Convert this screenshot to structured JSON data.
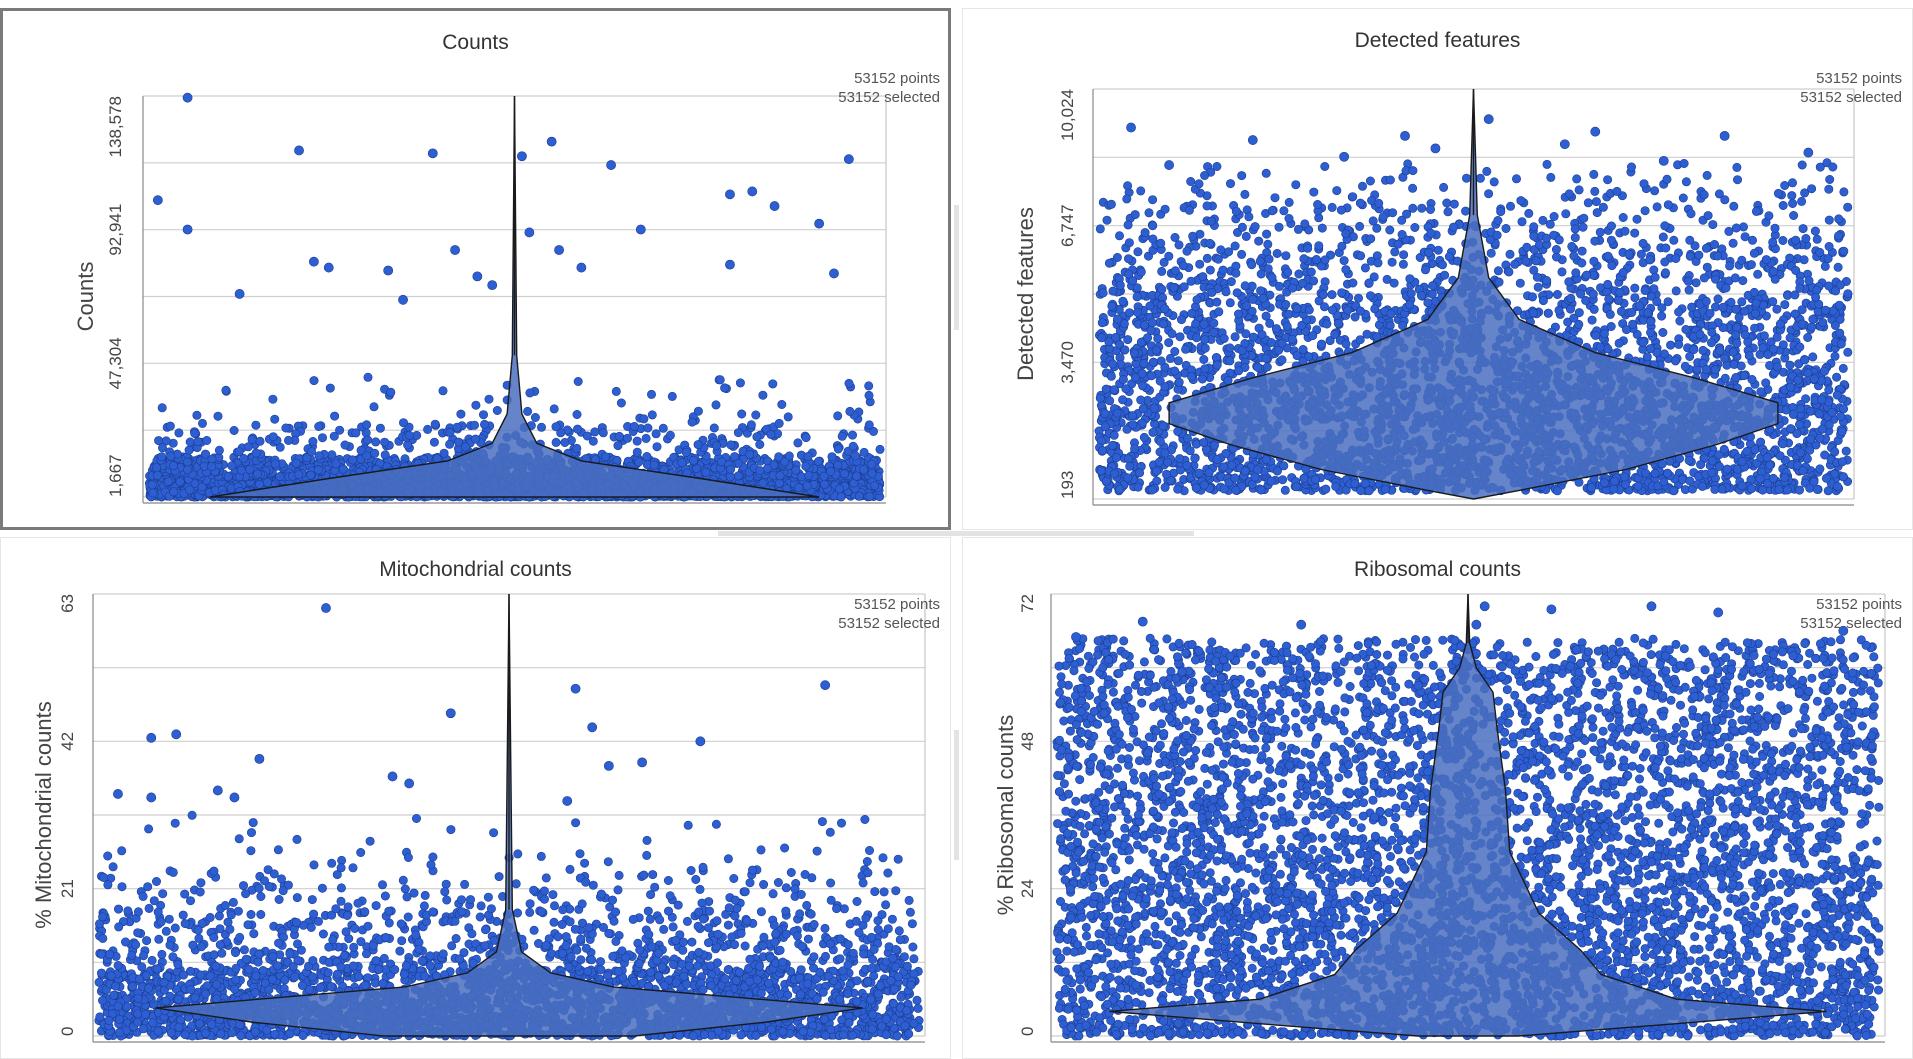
{
  "panels": [
    {
      "id": "counts",
      "title": "Counts",
      "ylabel": "Counts",
      "points_text": "53152 points",
      "selected_text": "53152 selected",
      "y_ticks": [
        "1,667",
        "47,304",
        "92,941",
        "138,578"
      ],
      "active": true
    },
    {
      "id": "features",
      "title": "Detected features",
      "ylabel": "Detected features",
      "points_text": "53152 points",
      "selected_text": "53152 selected",
      "y_ticks": [
        "193",
        "3,470",
        "6,747",
        "10,024"
      ],
      "active": false
    },
    {
      "id": "mito",
      "title": "Mitochondrial counts",
      "ylabel": "% Mitochondrial counts",
      "points_text": "53152 points",
      "selected_text": "53152 selected",
      "y_ticks": [
        "0",
        "21",
        "42",
        "63"
      ],
      "active": false
    },
    {
      "id": "ribo",
      "title": "Ribosomal counts",
      "ylabel": "% Ribosomal counts",
      "points_text": "53152 points",
      "selected_text": "53152 selected",
      "y_ticks": [
        "0",
        "24",
        "48",
        "72"
      ],
      "active": false
    }
  ],
  "chart_data": [
    {
      "type": "scatter",
      "subtype": "violin-with-jitter",
      "title": "Counts",
      "ylabel": "Counts",
      "ylim": [
        1667,
        138578
      ],
      "yticks": [
        1667,
        47304,
        92941,
        138578
      ],
      "n_points": 53152,
      "n_selected": 53152,
      "grid": true,
      "point_color": "#2d5fd3",
      "violin_color": "#4a6fc0",
      "violin_profile": [
        {
          "y": 1667,
          "w": 0.82
        },
        {
          "y": 8000,
          "w": 0.5
        },
        {
          "y": 14000,
          "w": 0.18
        },
        {
          "y": 20000,
          "w": 0.06
        },
        {
          "y": 30000,
          "w": 0.02
        },
        {
          "y": 50000,
          "w": 0.006
        },
        {
          "y": 138578,
          "w": 0.0
        }
      ],
      "outliers": [
        {
          "x": 0.06,
          "y": 138000
        },
        {
          "x": 0.02,
          "y": 103000
        },
        {
          "x": 0.06,
          "y": 93000
        },
        {
          "x": 0.21,
          "y": 120000
        },
        {
          "x": 0.39,
          "y": 119000
        },
        {
          "x": 0.51,
          "y": 118000
        },
        {
          "x": 0.55,
          "y": 123000
        },
        {
          "x": 0.63,
          "y": 115000
        },
        {
          "x": 0.95,
          "y": 117000
        },
        {
          "x": 0.79,
          "y": 105000
        },
        {
          "x": 0.82,
          "y": 106000
        },
        {
          "x": 0.85,
          "y": 101000
        },
        {
          "x": 0.91,
          "y": 95000
        },
        {
          "x": 0.67,
          "y": 93000
        },
        {
          "x": 0.52,
          "y": 92000
        },
        {
          "x": 0.42,
          "y": 86000
        },
        {
          "x": 0.56,
          "y": 86000
        },
        {
          "x": 0.23,
          "y": 82000
        },
        {
          "x": 0.25,
          "y": 80000
        },
        {
          "x": 0.33,
          "y": 79000
        },
        {
          "x": 0.45,
          "y": 77000
        },
        {
          "x": 0.47,
          "y": 74000
        },
        {
          "x": 0.13,
          "y": 71000
        },
        {
          "x": 0.35,
          "y": 69000
        },
        {
          "x": 0.59,
          "y": 80000
        },
        {
          "x": 0.79,
          "y": 81000
        },
        {
          "x": 0.93,
          "y": 78000
        }
      ]
    },
    {
      "type": "scatter",
      "subtype": "violin-with-jitter",
      "title": "Detected features",
      "ylabel": "Detected features",
      "ylim": [
        193,
        10024
      ],
      "yticks": [
        193,
        3470,
        6747,
        10024
      ],
      "n_points": 53152,
      "n_selected": 53152,
      "grid": true,
      "point_color": "#2d5fd3",
      "violin_color": "#4a6fc0",
      "violin_profile": [
        {
          "y": 193,
          "w": 0.0
        },
        {
          "y": 400,
          "w": 0.12
        },
        {
          "y": 900,
          "w": 0.4
        },
        {
          "y": 1500,
          "w": 0.64
        },
        {
          "y": 2000,
          "w": 0.8
        },
        {
          "y": 2500,
          "w": 0.8
        },
        {
          "y": 3100,
          "w": 0.58
        },
        {
          "y": 3700,
          "w": 0.32
        },
        {
          "y": 4500,
          "w": 0.12
        },
        {
          "y": 5500,
          "w": 0.04
        },
        {
          "y": 7000,
          "w": 0.01
        },
        {
          "y": 10024,
          "w": 0.0
        }
      ],
      "outliers": [
        {
          "x": 0.05,
          "y": 9100
        },
        {
          "x": 0.52,
          "y": 9300
        },
        {
          "x": 0.66,
          "y": 9000
        },
        {
          "x": 0.83,
          "y": 8900
        },
        {
          "x": 0.21,
          "y": 8800
        },
        {
          "x": 0.41,
          "y": 8900
        },
        {
          "x": 0.62,
          "y": 8700
        },
        {
          "x": 0.94,
          "y": 8500
        },
        {
          "x": 0.1,
          "y": 8200
        },
        {
          "x": 0.33,
          "y": 8400
        },
        {
          "x": 0.75,
          "y": 8300
        },
        {
          "x": 0.45,
          "y": 8600
        }
      ]
    },
    {
      "type": "scatter",
      "subtype": "violin-with-jitter",
      "title": "Mitochondrial counts",
      "ylabel": "% Mitochondrial counts",
      "ylim": [
        0,
        63
      ],
      "yticks": [
        0,
        21,
        42,
        63
      ],
      "n_points": 53152,
      "n_selected": 53152,
      "grid": true,
      "point_color": "#2d5fd3",
      "violin_color": "#4a6fc0",
      "violin_profile": [
        {
          "y": 0,
          "w": 0.3
        },
        {
          "y": 2,
          "w": 0.62
        },
        {
          "y": 4,
          "w": 0.85
        },
        {
          "y": 5.5,
          "w": 0.55
        },
        {
          "y": 7,
          "w": 0.25
        },
        {
          "y": 9,
          "w": 0.1
        },
        {
          "y": 12,
          "w": 0.03
        },
        {
          "y": 18,
          "w": 0.008
        },
        {
          "y": 63,
          "w": 0.0
        }
      ],
      "outliers": [
        {
          "x": 0.28,
          "y": 61
        },
        {
          "x": 0.88,
          "y": 50
        },
        {
          "x": 0.58,
          "y": 49.5
        },
        {
          "x": 0.43,
          "y": 46
        },
        {
          "x": 0.6,
          "y": 44
        },
        {
          "x": 0.07,
          "y": 42.5
        },
        {
          "x": 0.1,
          "y": 43
        },
        {
          "x": 0.73,
          "y": 42
        },
        {
          "x": 0.2,
          "y": 39.5
        },
        {
          "x": 0.66,
          "y": 39
        },
        {
          "x": 0.62,
          "y": 38.5
        },
        {
          "x": 0.36,
          "y": 37
        },
        {
          "x": 0.38,
          "y": 36
        },
        {
          "x": 0.03,
          "y": 34.5
        },
        {
          "x": 0.07,
          "y": 34
        },
        {
          "x": 0.15,
          "y": 35
        },
        {
          "x": 0.17,
          "y": 34
        },
        {
          "x": 0.57,
          "y": 33.5
        }
      ]
    },
    {
      "type": "scatter",
      "subtype": "violin-with-jitter",
      "title": "Ribosomal counts",
      "ylabel": "% Ribosomal counts",
      "ylim": [
        0,
        72
      ],
      "yticks": [
        0,
        24,
        48,
        72
      ],
      "n_points": 53152,
      "n_selected": 53152,
      "grid": true,
      "point_color": "#2d5fd3",
      "violin_color": "#4a6fc0",
      "violin_profile": [
        {
          "y": 0,
          "w": 0.12
        },
        {
          "y": 2,
          "w": 0.5
        },
        {
          "y": 4,
          "w": 0.86
        },
        {
          "y": 6,
          "w": 0.5
        },
        {
          "y": 10,
          "w": 0.32
        },
        {
          "y": 14,
          "w": 0.27
        },
        {
          "y": 20,
          "w": 0.17
        },
        {
          "y": 30,
          "w": 0.1
        },
        {
          "y": 40,
          "w": 0.09
        },
        {
          "y": 50,
          "w": 0.07
        },
        {
          "y": 56,
          "w": 0.06
        },
        {
          "y": 60,
          "w": 0.02
        },
        {
          "y": 64,
          "w": 0.004
        },
        {
          "y": 72,
          "w": 0.0
        }
      ],
      "outliers": [
        {
          "x": 0.72,
          "y": 70
        },
        {
          "x": 0.52,
          "y": 70
        },
        {
          "x": 0.6,
          "y": 69.5
        },
        {
          "x": 0.51,
          "y": 67
        },
        {
          "x": 0.8,
          "y": 69
        },
        {
          "x": 0.95,
          "y": 66
        },
        {
          "x": 0.03,
          "y": 65
        },
        {
          "x": 0.11,
          "y": 67.5
        },
        {
          "x": 0.3,
          "y": 67
        }
      ]
    }
  ]
}
